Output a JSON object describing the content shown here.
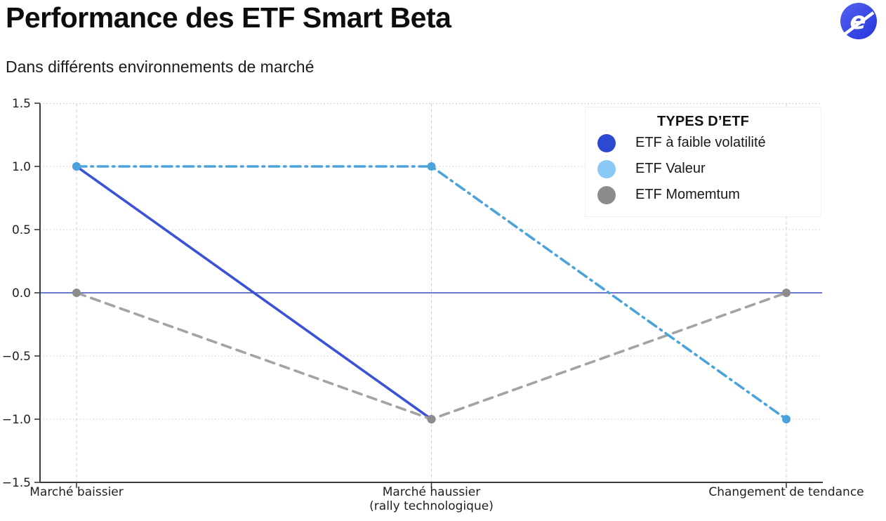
{
  "header": {
    "title": "Performance des ETF Smart Beta",
    "subtitle": "Dans différents environnements de marché",
    "logo_letter": "e"
  },
  "legend": {
    "title": "TYPES D’ETF",
    "items": [
      {
        "label": "ETF à faible volatilité",
        "color": "#2B49D1"
      },
      {
        "label": "ETF Valeur",
        "color": "#8AC9F5"
      },
      {
        "label": "ETF Momemtum",
        "color": "#8C8C8C"
      }
    ]
  },
  "chart_data": {
    "type": "line",
    "title": "Performance des ETF Smart Beta",
    "subtitle": "Dans différents environnements de marché",
    "categories": [
      "Marché baissier",
      "Marché haussier\n(rally technologique)",
      "Changement de tendance"
    ],
    "series": [
      {
        "name": "ETF à faible volatilité",
        "values": [
          1.0,
          -1.0,
          null
        ],
        "color": "#3A52D8",
        "marker_color": "#3A52D8",
        "style": "solid"
      },
      {
        "name": "ETF Valeur",
        "values": [
          1.0,
          1.0,
          -1.0
        ],
        "color": "#4BA3DC",
        "marker_color": "#4BA3DC",
        "style": "dashdot"
      },
      {
        "name": "ETF Momemtum",
        "values": [
          0.0,
          -1.0,
          0.0
        ],
        "color": "#A3A3A3",
        "marker_color": "#8C8C8C",
        "style": "dashed"
      }
    ],
    "ylim": [
      -1.5,
      1.5
    ],
    "yticks": [
      "1.5",
      "1.0",
      "0.5",
      "0.0",
      "−0.5",
      "−1.0",
      "−1.5"
    ],
    "zero_line": {
      "y": 0,
      "color": "#5766C5"
    },
    "grid": true,
    "legend_position": "top-right",
    "colors": {
      "grid": "#c9c9c9",
      "vgrid": "#cdcdcd",
      "axis": "#3b3b3b",
      "tick_label": "#1f1f1f"
    }
  }
}
